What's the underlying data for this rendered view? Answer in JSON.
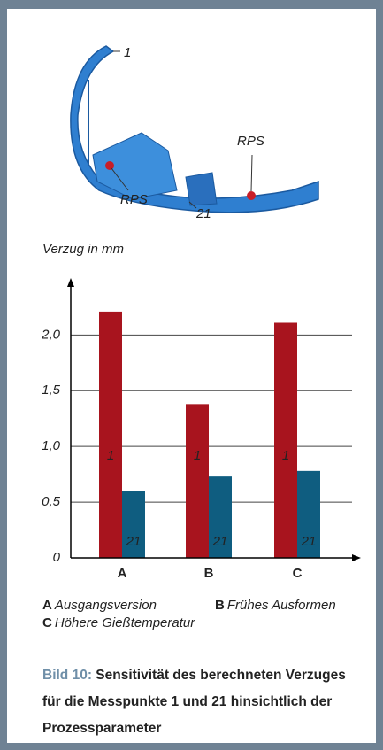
{
  "figure_labels": {
    "point_1": "1",
    "rps_right": "RPS",
    "rps_left": "RPS",
    "point_21": "21"
  },
  "chart_data": {
    "type": "bar",
    "y_axis_label": "Verzug in mm",
    "categories": [
      "A",
      "B",
      "C"
    ],
    "category_descriptions": [
      "Ausgangsversion",
      "Frühes Ausformen",
      "Höhere Gießtemperatur"
    ],
    "series": [
      {
        "name": "1",
        "color": "#a8141e",
        "values": [
          2.21,
          1.38,
          2.11
        ]
      },
      {
        "name": "21",
        "color": "#0f5d80",
        "values": [
          0.6,
          0.73,
          0.78
        ]
      }
    ],
    "ylim": [
      0,
      2.4
    ],
    "yticks": [
      0,
      {
        "value": 0.5,
        "label": "0,5"
      },
      {
        "value": 1.0,
        "label": "1,0"
      },
      {
        "value": 1.5,
        "label": "1,5"
      },
      {
        "value": 2.0,
        "label": "2,0"
      }
    ],
    "grid": true
  },
  "caption": {
    "label": "Bild 10:",
    "text": "Sensitivität des berechneten Verzuges für die Messpunkte 1 und 21 hinsichtlich der Prozessparameter"
  }
}
